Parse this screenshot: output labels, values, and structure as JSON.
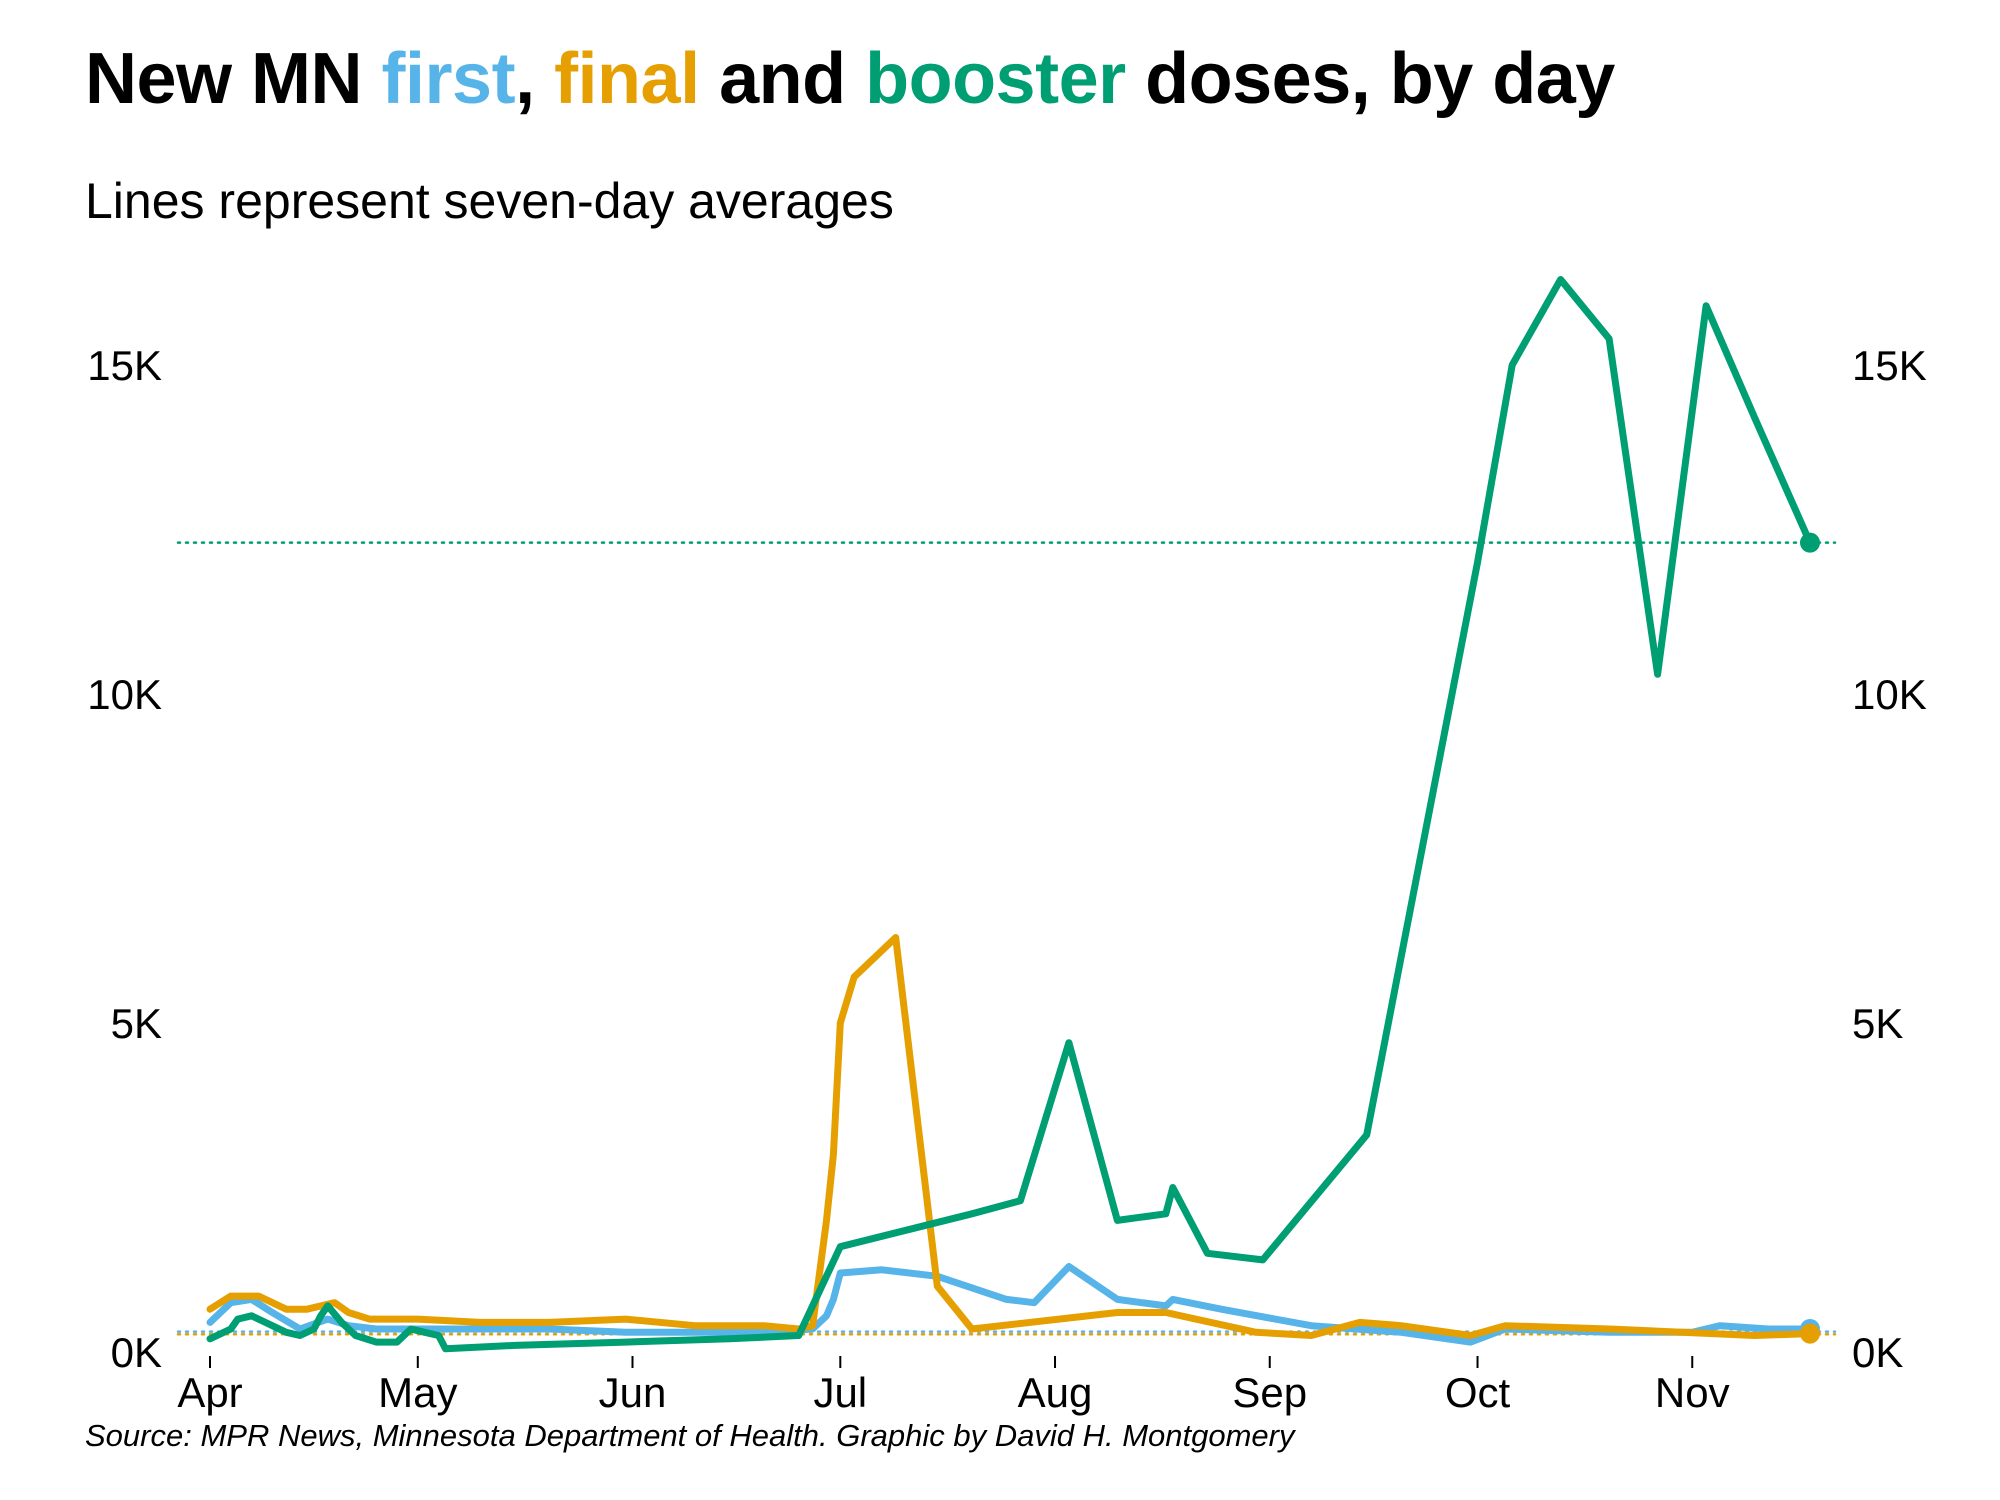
{
  "title": {
    "parts": [
      {
        "text": "New MN ",
        "color": "#000000"
      },
      {
        "text": "first",
        "color": "#56b4e9"
      },
      {
        "text": ", ",
        "color": "#000000"
      },
      {
        "text": "final",
        "color": "#e69f00"
      },
      {
        "text": " and ",
        "color": "#000000"
      },
      {
        "text": "booster",
        "color": "#009e73"
      },
      {
        "text": " doses, by day",
        "color": "#000000"
      }
    ]
  },
  "subtitle": "Lines represent seven-day averages",
  "source": "Source: MPR News, Minnesota Department of Health. Graphic by David H. Montgomery",
  "chart_data": {
    "type": "line",
    "x_range": [
      "2021-04-01",
      "2021-11-18"
    ],
    "ylim": [
      0,
      16000
    ],
    "y_ticks": [
      {
        "value": 0,
        "label": "0K"
      },
      {
        "value": 5000,
        "label": "5K"
      },
      {
        "value": 10000,
        "label": "10K"
      },
      {
        "value": 15000,
        "label": "15K"
      }
    ],
    "y_axis_both_sides": true,
    "x_ticks": [
      {
        "date": "2021-04-01",
        "label": "Apr"
      },
      {
        "date": "2021-05-01",
        "label": "May"
      },
      {
        "date": "2021-06-01",
        "label": "Jun"
      },
      {
        "date": "2021-07-01",
        "label": "Jul"
      },
      {
        "date": "2021-08-01",
        "label": "Aug"
      },
      {
        "date": "2021-09-01",
        "label": "Sep"
      },
      {
        "date": "2021-10-01",
        "label": "Oct"
      },
      {
        "date": "2021-11-01",
        "label": "Nov"
      }
    ],
    "grid": false,
    "reference_lines": [
      {
        "series": "booster",
        "value": 12300,
        "color": "#009e73"
      },
      {
        "series": "first",
        "value": 310,
        "color": "#56b4e9"
      },
      {
        "series": "final",
        "value": 270,
        "color": "#e69f00"
      }
    ],
    "series": [
      {
        "key": "first",
        "color": "#56b4e9",
        "points": [
          [
            "2021-04-01",
            450
          ],
          [
            "2021-04-04",
            750
          ],
          [
            "2021-04-07",
            800
          ],
          [
            "2021-04-10",
            600
          ],
          [
            "2021-04-14",
            350
          ],
          [
            "2021-04-18",
            500
          ],
          [
            "2021-04-21",
            400
          ],
          [
            "2021-04-25",
            350
          ],
          [
            "2021-05-01",
            350
          ],
          [
            "2021-05-10",
            350
          ],
          [
            "2021-05-20",
            350
          ],
          [
            "2021-05-31",
            300
          ],
          [
            "2021-06-10",
            300
          ],
          [
            "2021-06-20",
            300
          ],
          [
            "2021-06-27",
            350
          ],
          [
            "2021-06-29",
            550
          ],
          [
            "2021-06-30",
            800
          ],
          [
            "2021-07-01",
            1200
          ],
          [
            "2021-07-07",
            1250
          ],
          [
            "2021-07-15",
            1150
          ],
          [
            "2021-07-25",
            800
          ],
          [
            "2021-07-29",
            750
          ],
          [
            "2021-08-03",
            1300
          ],
          [
            "2021-08-10",
            800
          ],
          [
            "2021-08-17",
            700
          ],
          [
            "2021-08-18",
            800
          ],
          [
            "2021-08-25",
            650
          ],
          [
            "2021-09-07",
            400
          ],
          [
            "2021-09-20",
            300
          ],
          [
            "2021-09-30",
            150
          ],
          [
            "2021-10-05",
            350
          ],
          [
            "2021-10-20",
            300
          ],
          [
            "2021-11-01",
            300
          ],
          [
            "2021-11-05",
            400
          ],
          [
            "2021-11-12",
            350
          ],
          [
            "2021-11-18",
            350
          ]
        ]
      },
      {
        "key": "final",
        "color": "#e69f00",
        "points": [
          [
            "2021-04-01",
            650
          ],
          [
            "2021-04-04",
            850
          ],
          [
            "2021-04-08",
            850
          ],
          [
            "2021-04-12",
            650
          ],
          [
            "2021-04-15",
            650
          ],
          [
            "2021-04-19",
            750
          ],
          [
            "2021-04-21",
            600
          ],
          [
            "2021-04-24",
            500
          ],
          [
            "2021-05-01",
            500
          ],
          [
            "2021-05-10",
            450
          ],
          [
            "2021-05-20",
            450
          ],
          [
            "2021-05-31",
            500
          ],
          [
            "2021-06-10",
            400
          ],
          [
            "2021-06-20",
            400
          ],
          [
            "2021-06-25",
            350
          ],
          [
            "2021-06-27",
            400
          ],
          [
            "2021-06-29",
            2000
          ],
          [
            "2021-06-30",
            3000
          ],
          [
            "2021-07-01",
            5000
          ],
          [
            "2021-07-03",
            5700
          ],
          [
            "2021-07-09",
            6300
          ],
          [
            "2021-07-15",
            1000
          ],
          [
            "2021-07-20",
            350
          ],
          [
            "2021-08-10",
            600
          ],
          [
            "2021-08-17",
            600
          ],
          [
            "2021-08-30",
            300
          ],
          [
            "2021-09-07",
            250
          ],
          [
            "2021-09-14",
            450
          ],
          [
            "2021-09-20",
            400
          ],
          [
            "2021-09-30",
            250
          ],
          [
            "2021-10-05",
            400
          ],
          [
            "2021-10-20",
            350
          ],
          [
            "2021-11-10",
            250
          ],
          [
            "2021-11-18",
            280
          ]
        ]
      },
      {
        "key": "booster",
        "color": "#009e73",
        "points": [
          [
            "2021-04-01",
            200
          ],
          [
            "2021-04-04",
            350
          ],
          [
            "2021-04-05",
            500
          ],
          [
            "2021-04-07",
            550
          ],
          [
            "2021-04-09",
            450
          ],
          [
            "2021-04-12",
            300
          ],
          [
            "2021-04-14",
            250
          ],
          [
            "2021-04-16",
            350
          ],
          [
            "2021-04-17",
            550
          ],
          [
            "2021-04-18",
            700
          ],
          [
            "2021-04-20",
            450
          ],
          [
            "2021-04-22",
            250
          ],
          [
            "2021-04-25",
            150
          ],
          [
            "2021-04-28",
            150
          ],
          [
            "2021-04-30",
            350
          ],
          [
            "2021-05-02",
            300
          ],
          [
            "2021-05-04",
            250
          ],
          [
            "2021-05-05",
            50
          ],
          [
            "2021-05-15",
            100
          ],
          [
            "2021-05-31",
            150
          ],
          [
            "2021-06-15",
            200
          ],
          [
            "2021-06-25",
            250
          ],
          [
            "2021-07-01",
            1600
          ],
          [
            "2021-07-20",
            2100
          ],
          [
            "2021-07-27",
            2300
          ],
          [
            "2021-08-03",
            4700
          ],
          [
            "2021-08-10",
            2000
          ],
          [
            "2021-08-17",
            2100
          ],
          [
            "2021-08-18",
            2500
          ],
          [
            "2021-08-23",
            1500
          ],
          [
            "2021-08-31",
            1400
          ],
          [
            "2021-09-15",
            3300
          ],
          [
            "2021-10-01",
            12000
          ],
          [
            "2021-10-06",
            15000
          ],
          [
            "2021-10-13",
            16300
          ],
          [
            "2021-10-20",
            15400
          ],
          [
            "2021-10-27",
            10300
          ],
          [
            "2021-11-03",
            15900
          ],
          [
            "2021-11-10",
            14200
          ],
          [
            "2021-11-18",
            12300
          ]
        ]
      }
    ]
  }
}
